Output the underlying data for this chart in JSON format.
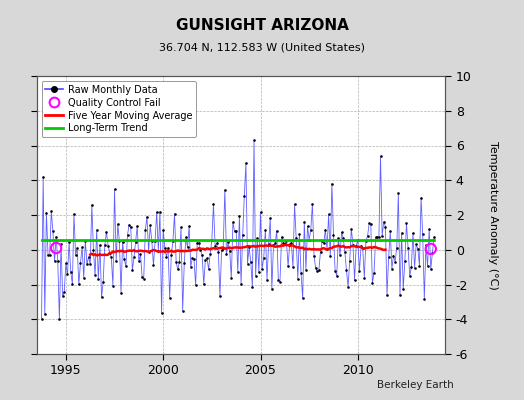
{
  "title": "GUNSIGHT ARIZONA",
  "subtitle": "36.704 N, 112.583 W (United States)",
  "credit": "Berkeley Earth",
  "ylabel": "Temperature Anomaly (°C)",
  "xlim": [
    1993.5,
    2014.5
  ],
  "ylim": [
    -6,
    10
  ],
  "yticks": [
    -6,
    -4,
    -2,
    0,
    2,
    4,
    6,
    8,
    10
  ],
  "xticks": [
    1995,
    2000,
    2005,
    2010
  ],
  "fig_bg_color": "#d8d8d8",
  "plot_bg_color": "#ffffff",
  "grid_color": "#b0b0b0",
  "raw_line_color": "#4444ff",
  "raw_dot_color": "#000000",
  "moving_avg_color": "#ff0000",
  "trend_color": "#00cc00",
  "qc_fail_color": "#ff00ff",
  "title_fontsize": 11,
  "subtitle_fontsize": 8,
  "tick_fontsize": 9,
  "ylabel_fontsize": 8,
  "qc_fail_points_x": [
    1994.5,
    2013.75
  ],
  "qc_fail_points_y": [
    0.1,
    0.05
  ],
  "trend_slope": 0.0,
  "trend_intercept": 0.55,
  "seed": 42,
  "start_year": 1993.75,
  "n_months": 243
}
